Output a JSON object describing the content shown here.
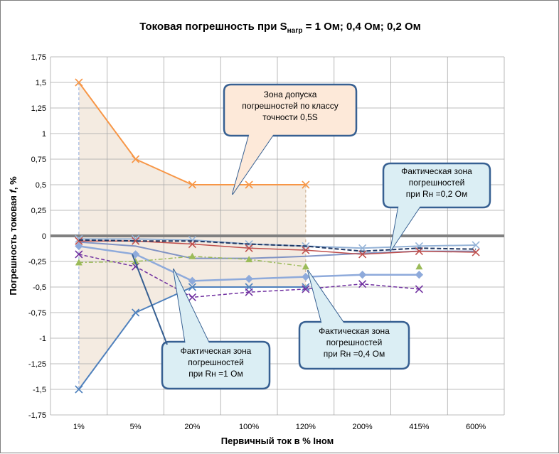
{
  "title": {
    "main": "Токовая погрешность при S",
    "sub": "нагр",
    "rest": " = 1 Ом; 0,4 Ом; 0,2 Ом"
  },
  "callouts": [
    {
      "id": "zone",
      "lines": [
        "Зона допуска",
        "погрешностей по классу",
        "точности 0,5S"
      ]
    },
    {
      "id": "r02",
      "lines": [
        "Фактическая зона",
        "погрешностей",
        "при Rн =0,2 Ом"
      ]
    },
    {
      "id": "r04",
      "lines": [
        "Фактическая зона",
        "погрешностей",
        "при Rн =0,4 Ом"
      ]
    },
    {
      "id": "r1",
      "lines": [
        "Фактическая зона",
        "погрешностей",
        "при Rн =1 Ом"
      ]
    }
  ],
  "colors": {
    "zone_fill": "#f2e8dc",
    "zone_line": "#f79646",
    "zone_lower": "#4f81bd",
    "r1": "#8eaadb",
    "callout_fill_zone": "#fde9d9",
    "callout_fill": "#dbeef4",
    "callout_border": "#376092"
  },
  "chart_data": {
    "type": "line",
    "xlabel": "Первичный ток в % Iном",
    "ylabel": "Погрешность токовая f, %",
    "categories": [
      "1%",
      "5%",
      "20%",
      "100%",
      "120%",
      "200%",
      "415%",
      "600%"
    ],
    "ylim": [
      -1.75,
      1.75
    ],
    "yticks": [
      "1,75",
      "1,5",
      "1,25",
      "1",
      "0,75",
      "0,5",
      "0,25",
      "0",
      "-0,25",
      "-0,5",
      "-0,75",
      "-1",
      "-1,25",
      "-1,5",
      "-1,75"
    ],
    "grid": true,
    "series": [
      {
        "values": [
          1.5,
          0.75,
          0.5,
          0.5,
          0.5,
          null,
          null,
          null
        ],
        "color": "#f79646",
        "marker": "x",
        "width": 2
      },
      {
        "values": [
          -1.5,
          -0.75,
          -0.5,
          -0.5,
          -0.5,
          null,
          null,
          null
        ],
        "color": "#4f81bd",
        "marker": "x",
        "width": 2
      },
      {
        "values": [
          -0.03,
          -0.03,
          -0.04,
          -0.08,
          -0.1,
          -0.12,
          -0.1,
          -0.09
        ],
        "color": "#95b3d7",
        "marker": "x",
        "width": 2
      },
      {
        "values": [
          -0.1,
          -0.18,
          -0.44,
          -0.42,
          -0.4,
          -0.38,
          -0.38,
          null
        ],
        "color": "#8eaadb",
        "marker": "diamond",
        "width": 2.5
      },
      {
        "values": [
          -0.06,
          -0.1,
          -0.22,
          -0.22,
          -0.2,
          -0.17,
          -0.15,
          -0.15
        ],
        "color": "#8093c4",
        "marker": "none",
        "width": 2
      },
      {
        "values": [
          -0.05,
          -0.05,
          -0.08,
          -0.12,
          -0.14,
          -0.18,
          -0.15,
          -0.16
        ],
        "color": "#c0504d",
        "marker": "x",
        "width": 1.5
      },
      {
        "values": [
          -0.04,
          -0.05,
          -0.05,
          -0.08,
          -0.1,
          -0.15,
          -0.12,
          -0.13
        ],
        "color": "#1f3864",
        "marker": "none",
        "width": 2,
        "dash": "6,3"
      },
      {
        "values": [
          -0.18,
          -0.3,
          -0.6,
          -0.55,
          -0.52,
          -0.47,
          -0.52,
          null
        ],
        "color": "#7030a0",
        "marker": "x",
        "width": 1.5,
        "dash": "5,3"
      },
      {
        "values": [
          -0.26,
          -0.25,
          -0.2,
          -0.23,
          -0.3,
          null,
          -0.3,
          null
        ],
        "color": "#9bbb59",
        "marker": "triangle",
        "width": 1.5,
        "dash": "6,3,2,3"
      }
    ]
  }
}
